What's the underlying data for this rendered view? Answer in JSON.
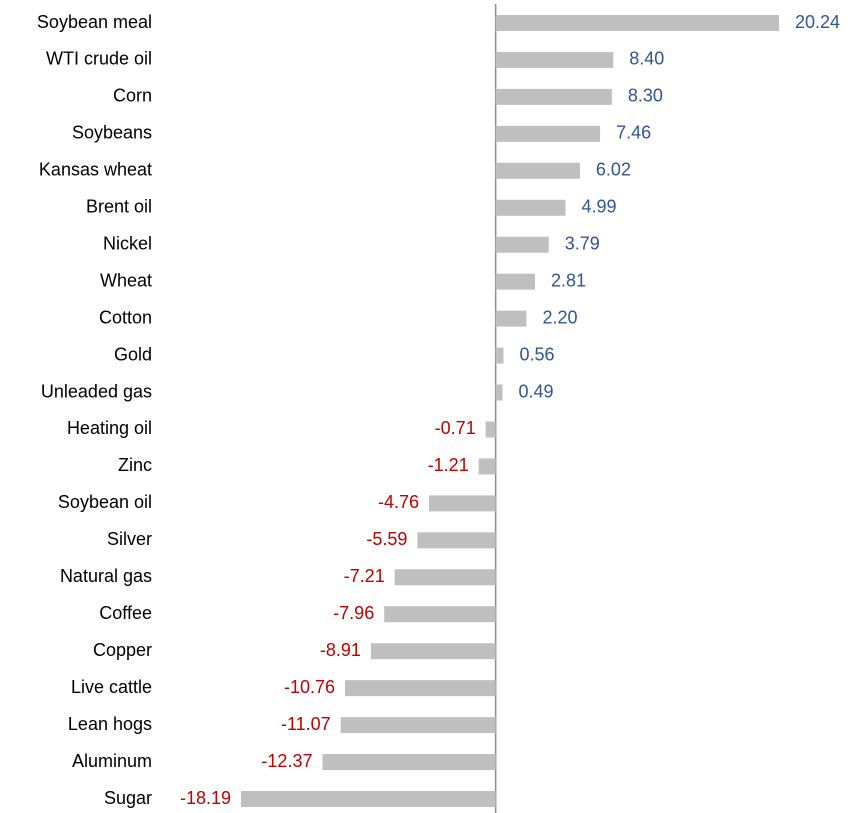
{
  "chart_data": {
    "type": "barh",
    "categories": [
      "Soybean meal",
      "WTI crude oil",
      "Corn",
      "Soybeans",
      "Kansas wheat",
      "Brent oil",
      "Nickel",
      "Wheat",
      "Cotton",
      "Gold",
      "Unleaded gas",
      "Heating oil",
      "Zinc",
      "Soybean oil",
      "Silver",
      "Natural gas",
      "Coffee",
      "Copper",
      "Live cattle",
      "Lean hogs",
      "Aluminum",
      "Sugar"
    ],
    "values": [
      20.24,
      8.4,
      8.3,
      7.46,
      6.02,
      4.99,
      3.79,
      2.81,
      2.2,
      0.56,
      0.49,
      -0.71,
      -1.21,
      -4.76,
      -5.59,
      -7.21,
      -7.96,
      -8.91,
      -10.76,
      -11.07,
      -12.37,
      -18.19
    ],
    "value_labels": [
      "20.24",
      "8.40",
      "8.30",
      "7.46",
      "6.02",
      "4.99",
      "3.79",
      "2.81",
      "2.20",
      "0.56",
      "0.49",
      "-0.71",
      "-1.21",
      "-4.76",
      "-5.59",
      "-7.21",
      "-7.96",
      "-8.91",
      "-10.76",
      "-11.07",
      "-12.37",
      "-18.19"
    ],
    "color": "#bfbfbf",
    "positive_label_color": "#2f5597",
    "negative_label_color": "#c00000"
  }
}
